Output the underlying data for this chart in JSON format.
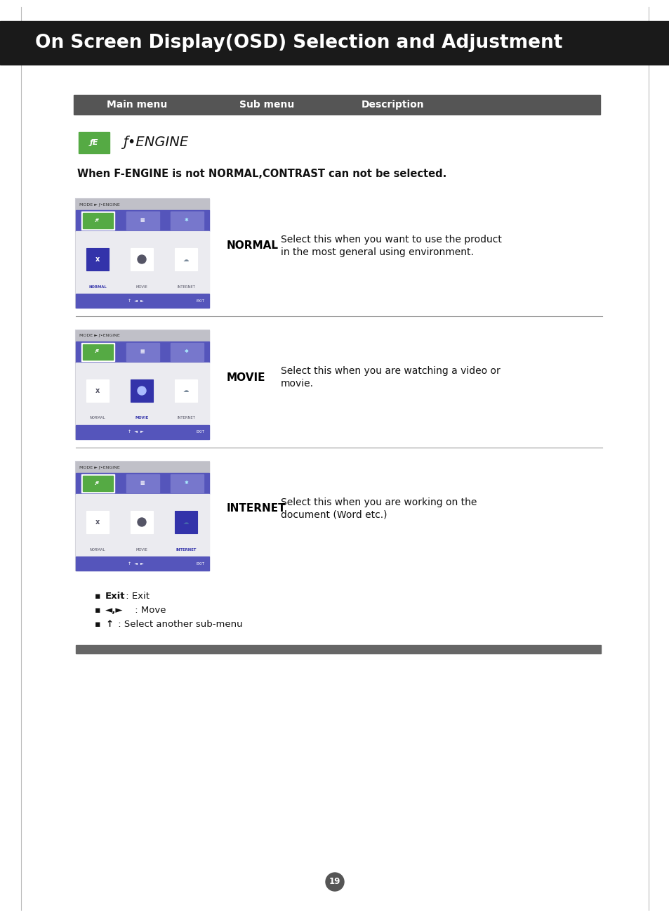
{
  "title": "On Screen Display(OSD) Selection and Adjustment",
  "title_bg": "#1a1a1a",
  "title_color": "#ffffff",
  "title_fontsize": 19,
  "header_bg": "#555555",
  "header_color": "#ffffff",
  "header_text": [
    "Main menu",
    "Sub menu",
    "Description"
  ],
  "page_bg": "#ffffff",
  "page_number": "19",
  "warning_text": "When F-ENGINE is not NORMAL,CONTRAST can not be selected.",
  "sections": [
    {
      "label": "NORMAL",
      "desc_line1": "Select this when you want to use the product",
      "desc_line2": "in the most general using environment.",
      "highlight": 0
    },
    {
      "label": "MOVIE",
      "desc_line1": "Select this when you are watching a video or",
      "desc_line2": "movie.",
      "highlight": 1
    },
    {
      "label": "INTERNET",
      "desc_line1": "Select this when you are working on the",
      "desc_line2": "document (Word etc.)",
      "highlight": 2
    }
  ],
  "osd_gray_top": "#c0c0c8",
  "osd_blue_bar": "#5555bb",
  "osd_selected_col": "#3333aa",
  "osd_main_bg": "#e0e0e8",
  "osd_icon_green": "#55aa44",
  "osd_white": "#ffffff",
  "osd_light_icon": "#ccccdd",
  "divider_color": "#999999",
  "footer_bold": [
    "Exit",
    "◄,►",
    "↑"
  ],
  "footer_rest": [
    " : Exit",
    " : Move",
    " : Select another sub-menu"
  ],
  "bottom_bar_color": "#666666"
}
